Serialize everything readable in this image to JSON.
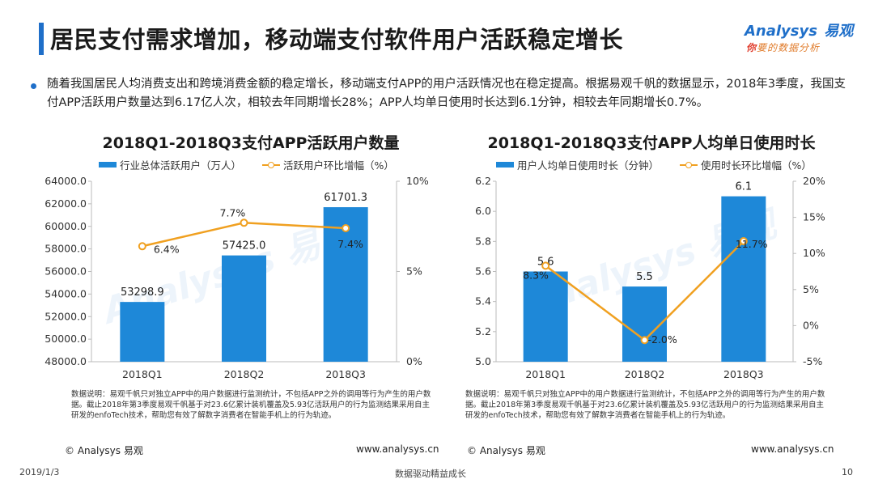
{
  "header": {
    "title": "居民支付需求增加，移动端支付软件用户活跃稳定增长",
    "logo_text": "Analysys",
    "logo_cn": "易观",
    "logo_tagline_ni": "你",
    "logo_tagline_rest": "要的数据分析"
  },
  "summary": "随着我国居民人均消费支出和跨境消费金额的稳定增长，移动端支付APP的用户活跃情况也在稳定提高。根据易观千帆的数据显示，2018年3季度，我国支付APP活跃用户数量达到6.17亿人次，相较去年同期增长28%；APP人均单日使用时长达到6.1分钟，相较去年同期增长0.7%。",
  "watermark": "Analysys 易观",
  "chart_data": [
    {
      "type": "bar",
      "title": "2018Q1-2018Q3支付APP活跃用户数量",
      "categories": [
        "2018Q1",
        "2018Q2",
        "2018Q3"
      ],
      "series": [
        {
          "name": "行业总体活跃用户（万人）",
          "type": "bar",
          "axis": "left",
          "values": [
            53298.9,
            57425.0,
            61701.3
          ],
          "labels": [
            "53298.9",
            "57425.0",
            "61701.3"
          ]
        },
        {
          "name": "活跃用户环比增幅（%）",
          "type": "line",
          "axis": "right",
          "values": [
            6.4,
            7.7,
            7.4
          ],
          "labels": [
            "6.4%",
            "7.7%",
            "7.4%"
          ]
        }
      ],
      "y_left": {
        "min": 48000,
        "max": 64000,
        "step": 2000,
        "ticks": [
          "48000.0",
          "50000.0",
          "52000.0",
          "54000.0",
          "56000.0",
          "58000.0",
          "60000.0",
          "62000.0",
          "64000.0"
        ]
      },
      "y_right": {
        "min": 0,
        "max": 10,
        "step": 5,
        "ticks": [
          "0%",
          "5%",
          "10%"
        ]
      },
      "grid": false,
      "legend": "top",
      "colors": {
        "bar": "#1e88d8",
        "line": "#f0a020"
      }
    },
    {
      "type": "bar",
      "title": "2018Q1-2018Q3支付APP人均单日使用时长",
      "categories": [
        "2018Q1",
        "2018Q2",
        "2018Q3"
      ],
      "series": [
        {
          "name": "用户人均单日使用时长（分钟）",
          "type": "bar",
          "axis": "left",
          "values": [
            5.6,
            5.5,
            6.1
          ],
          "labels": [
            "5.6",
            "5.5",
            "6.1"
          ]
        },
        {
          "name": "使用时长环比增幅（%）",
          "type": "line",
          "axis": "right",
          "values": [
            8.3,
            -2.0,
            11.7
          ],
          "labels": [
            "8.3%",
            "-2.0%",
            "11.7%"
          ]
        }
      ],
      "y_left": {
        "min": 5.0,
        "max": 6.2,
        "step": 0.2,
        "ticks": [
          "5.0",
          "5.2",
          "5.4",
          "5.6",
          "5.8",
          "6.0",
          "6.2"
        ]
      },
      "y_right": {
        "min": -5,
        "max": 20,
        "step": 5,
        "ticks": [
          "-5%",
          "0%",
          "5%",
          "10%",
          "15%",
          "20%"
        ]
      },
      "grid": false,
      "legend": "top",
      "colors": {
        "bar": "#1e88d8",
        "line": "#f0a020"
      }
    }
  ],
  "notes": {
    "left": "数据说明：易观千帆只对独立APP中的用户数据进行监测统计，不包括APP之外的调用等行为产生的用户数据。截止2018年第3季度易观千帆基于对23.6亿累计装机覆盖及5.93亿活跃用户的行为监测结果采用自主研发的enfoTech技术，帮助您有效了解数字消费者在智能手机上的行为轨迹。",
    "right": "数据说明：易观千帆只对独立APP中的用户数据进行监测统计，不包括APP之外的调用等行为产生的用户数据。截止2018年第3季度易观千帆基于对23.6亿累计装机覆盖及5.93亿活跃用户的行为监测结果采用自主研发的enfoTech技术，帮助您有效了解数字消费者在智能手机上的行为轨迹。"
  },
  "footer": {
    "copyright_left": "© Analysys 易观",
    "url_left": "www.analysys.cn",
    "copyright_right": "© Analysys 易观",
    "url_right": "www.analysys.cn",
    "date": "2019/1/3",
    "slogan": "数据驱动精益成长",
    "page": "10"
  }
}
